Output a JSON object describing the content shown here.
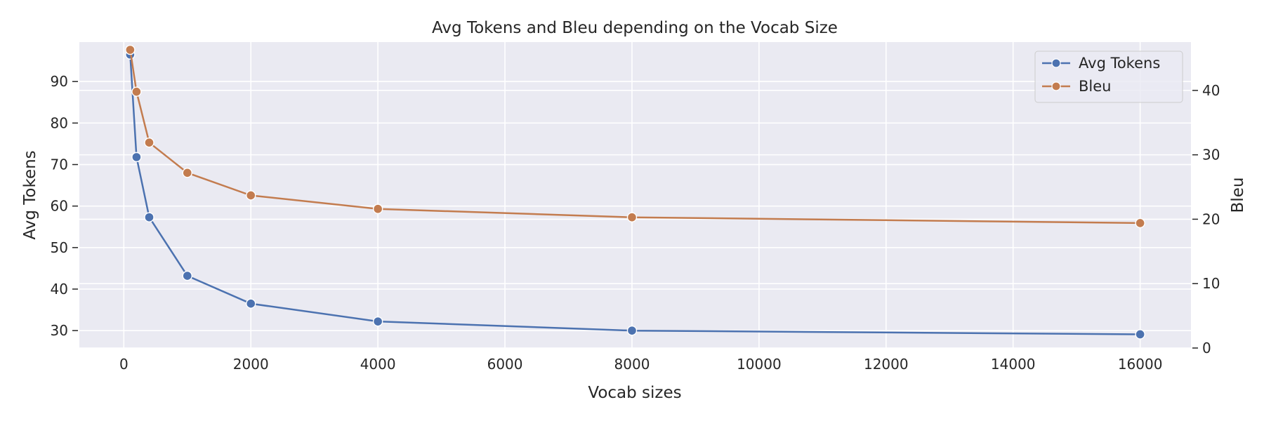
{
  "chart_data": {
    "type": "line",
    "title": "Avg Tokens and Bleu depending on the Vocab Size",
    "xlabel": "Vocab sizes",
    "ylabel_left": "Avg Tokens",
    "ylabel_right": "Bleu",
    "x": [
      100,
      200,
      400,
      1000,
      2000,
      4000,
      8000,
      16000
    ],
    "xlim": [
      -700,
      16800
    ],
    "xticks": [
      0,
      2000,
      4000,
      6000,
      8000,
      10000,
      12000,
      14000,
      16000
    ],
    "ylim_left": [
      25.8,
      99.5
    ],
    "yticks_left": [
      30,
      40,
      50,
      60,
      70,
      80,
      90
    ],
    "ylim_right": [
      0,
      47.5
    ],
    "yticks_right": [
      0,
      10,
      20,
      30,
      40
    ],
    "series": [
      {
        "name": "Avg Tokens",
        "axis": "left",
        "color": "#4c72b0",
        "values": [
          96.5,
          71.8,
          57.3,
          43.2,
          36.5,
          32.2,
          30.0,
          29.1
        ]
      },
      {
        "name": "Bleu",
        "axis": "right",
        "color": "#dd8452",
        "values": [
          46.3,
          39.8,
          31.9,
          27.2,
          23.7,
          21.6,
          20.3,
          19.4
        ]
      }
    ],
    "grid": true,
    "legend_position": "top-right"
  }
}
